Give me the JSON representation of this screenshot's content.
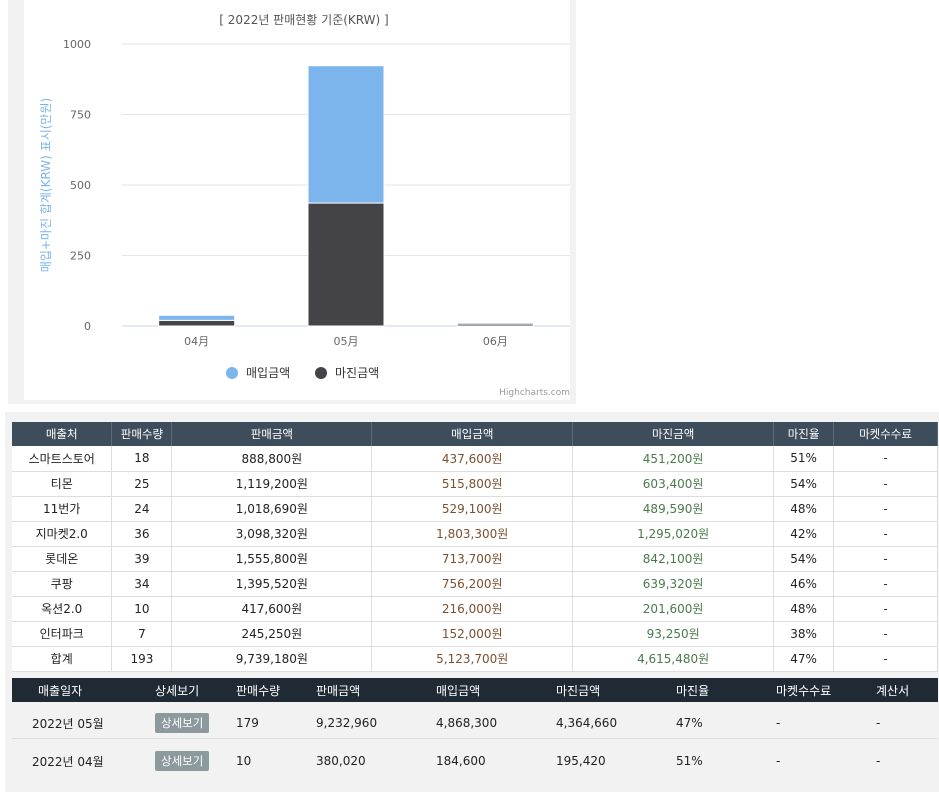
{
  "chart": {
    "title": "[ 2022년 판매현황 기준(KRW) ]",
    "ylabel": "매입+마진 합계(KRW) 표시(만원)",
    "credits": "Highcharts.com",
    "legend": [
      {
        "label": "매입금액",
        "color": "#7cb5ec"
      },
      {
        "label": "마진금액",
        "color": "#434348"
      }
    ]
  },
  "chart_data": {
    "type": "bar",
    "stacked": true,
    "categories": [
      "04月",
      "05月",
      "06月"
    ],
    "series": [
      {
        "name": "매입금액",
        "color": "#7cb5ec",
        "values": [
          18,
          487,
          5
        ]
      },
      {
        "name": "마진금액",
        "color": "#434348",
        "values": [
          20,
          436,
          7
        ]
      }
    ],
    "yticks": [
      "0",
      "250",
      "500",
      "750",
      "1000"
    ],
    "ylim": [
      0,
      1000
    ],
    "title": "[ 2022년 판매현황 기준(KRW) ]",
    "ylabel": "매입+마진 합계(KRW) 표시(만원)",
    "grid": true,
    "legend_position": "bottom"
  },
  "summary": {
    "headers": [
      "매출처",
      "판매수량",
      "판매금액",
      "매입금액",
      "마진금액",
      "마진율",
      "마켓수수료"
    ],
    "rows": [
      [
        "스마트스토어",
        "18",
        "888,800원",
        "437,600원",
        "451,200원",
        "51%",
        "-"
      ],
      [
        "티몬",
        "25",
        "1,119,200원",
        "515,800원",
        "603,400원",
        "54%",
        "-"
      ],
      [
        "11번가",
        "24",
        "1,018,690원",
        "529,100원",
        "489,590원",
        "48%",
        "-"
      ],
      [
        "지마켓2.0",
        "36",
        "3,098,320원",
        "1,803,300원",
        "1,295,020원",
        "42%",
        "-"
      ],
      [
        "롯데온",
        "39",
        "1,555,800원",
        "713,700원",
        "842,100원",
        "54%",
        "-"
      ],
      [
        "쿠팡",
        "34",
        "1,395,520원",
        "756,200원",
        "639,320원",
        "46%",
        "-"
      ],
      [
        "옥션2.0",
        "10",
        "417,600원",
        "216,000원",
        "201,600원",
        "48%",
        "-"
      ],
      [
        "인터파크",
        "7",
        "245,250원",
        "152,000원",
        "93,250원",
        "38%",
        "-"
      ],
      [
        "합계",
        "193",
        "9,739,180원",
        "5,123,700원",
        "4,615,480원",
        "47%",
        "-"
      ]
    ]
  },
  "monthly": {
    "headers": [
      "매출일자",
      "상세보기",
      "판매수량",
      "판매금액",
      "매입금액",
      "마진금액",
      "마진율",
      "마켓수수료",
      "계산서"
    ],
    "rows": [
      {
        "date": "2022년 05월",
        "detail": "상세보기",
        "qty": "179",
        "sales": "9,232,960",
        "purchase": "4,868,300",
        "margin": "4,364,660",
        "rate": "47%",
        "fee": "-",
        "invoice": "-"
      },
      {
        "date": "2022년 04월",
        "detail": "상세보기",
        "qty": "10",
        "sales": "380,020",
        "purchase": "184,600",
        "margin": "195,420",
        "rate": "51%",
        "fee": "-",
        "invoice": "-"
      }
    ]
  }
}
